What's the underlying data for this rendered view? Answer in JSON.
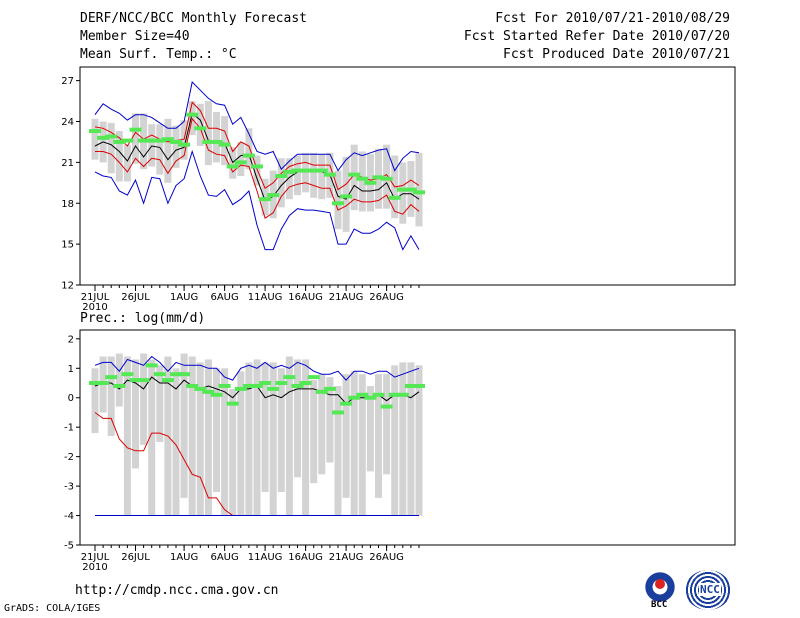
{
  "header": {
    "title": "DERF/NCC/BCC Monthly Forecast",
    "member_size": "Member Size=40",
    "variable": "Mean Surf. Temp.: °C",
    "forecast_period": "Fcst For 2010/07/21-2010/08/29",
    "started_refer": "Fcst Started Refer Date 2010/07/20",
    "produced": "Fcst Produced Date 2010/07/21"
  },
  "footer": {
    "url": "http://cmdp.ncc.cma.gov.cn",
    "grads": "GrADS: COLA/IGES",
    "logo_bcc": "BCC",
    "logo_ncc": "NCC"
  },
  "colors": {
    "box": "#d3d3d3",
    "ens_mean": "#000000",
    "max_min": "#0000cc",
    "spread": "#dd0000",
    "member_mark": "#55e855"
  },
  "chart_data": [
    {
      "id": "temperature",
      "type": "box-whisker-line",
      "title": "Mean Surf. Temp.: °C",
      "ylim": [
        12,
        28
      ],
      "yticks": [
        12,
        15,
        18,
        21,
        24,
        27
      ],
      "xlim": [
        0,
        40
      ],
      "xticks": [
        {
          "day": 0,
          "label": "21JUL",
          "sub": "2010"
        },
        {
          "day": 5,
          "label": "26JUL"
        },
        {
          "day": 11,
          "label": "1AUG"
        },
        {
          "day": 16,
          "label": "6AUG"
        },
        {
          "day": 21,
          "label": "11AUG"
        },
        {
          "day": 26,
          "label": "16AUG"
        },
        {
          "day": 31,
          "label": "21AUG"
        },
        {
          "day": 36,
          "label": "26AUG"
        }
      ],
      "box_low": [
        21.2,
        21.0,
        20.2,
        19.6,
        19.6,
        20.9,
        20.5,
        20.7,
        20.1,
        19.5,
        20.6,
        21.2,
        23.0,
        22.2,
        20.8,
        21.0,
        20.8,
        19.8,
        20.0,
        20.5,
        19.3,
        17.1,
        16.9,
        17.7,
        18.3,
        18.6,
        18.8,
        18.4,
        18.3,
        18.4,
        16.1,
        15.9,
        17.5,
        17.4,
        17.4,
        17.6,
        17.6,
        16.9,
        16.5,
        17.0,
        16.3
      ],
      "box_high": [
        24.2,
        24.0,
        23.9,
        23.3,
        22.3,
        24.6,
        24.6,
        23.8,
        23.8,
        24.2,
        23.7,
        24.1,
        25.5,
        25.3,
        25.5,
        24.7,
        24.4,
        22.1,
        22.5,
        23.5,
        21.5,
        19.8,
        20.4,
        21.3,
        21.3,
        21.5,
        21.7,
        21.7,
        21.6,
        21.7,
        20.4,
        21.4,
        22.3,
        21.8,
        21.6,
        22.0,
        22.3,
        21.5,
        21.0,
        21.1,
        21.7
      ],
      "series": [
        {
          "name": "Ensemble max",
          "color": "#0000cc",
          "values": [
            24.5,
            25.3,
            24.9,
            24.6,
            24.1,
            24.5,
            24.5,
            24.3,
            23.9,
            23.5,
            23.5,
            24.0,
            26.9,
            26.3,
            25.7,
            25.3,
            25.2,
            23.8,
            24.3,
            23.1,
            21.8,
            21.6,
            21.8,
            20.5,
            21.1,
            21.6,
            21.6,
            21.6,
            21.6,
            21.6,
            20.4,
            21.2,
            21.7,
            21.5,
            21.7,
            21.9,
            22.0,
            20.4,
            21.3,
            21.8,
            21.7
          ]
        },
        {
          "name": "Upper spread",
          "color": "#dd0000",
          "values": [
            23.6,
            23.5,
            23.2,
            22.8,
            22.2,
            23.2,
            22.7,
            23.0,
            22.7,
            22.5,
            22.6,
            22.7,
            25.4,
            24.8,
            23.5,
            23.5,
            23.3,
            21.8,
            22.5,
            22.2,
            20.5,
            19.1,
            19.5,
            20.2,
            20.7,
            20.9,
            21.0,
            20.8,
            20.8,
            20.8,
            19.0,
            19.4,
            20.1,
            19.9,
            19.7,
            19.8,
            20.1,
            19.2,
            19.3,
            19.7,
            19.3
          ]
        },
        {
          "name": "Ensemble mean",
          "color": "#000000",
          "values": [
            22.2,
            22.5,
            22.3,
            21.8,
            21.1,
            22.2,
            21.4,
            22.2,
            22.1,
            21.2,
            21.9,
            22.1,
            24.6,
            24.1,
            22.6,
            22.5,
            22.4,
            21.0,
            21.5,
            21.6,
            19.8,
            18.2,
            18.5,
            19.3,
            19.9,
            20.3,
            20.4,
            20.3,
            20.3,
            20.1,
            18.5,
            18.3,
            19.3,
            18.9,
            18.9,
            19.0,
            19.5,
            18.3,
            18.7,
            18.7,
            18.3
          ]
        },
        {
          "name": "Lower spread",
          "color": "#dd0000",
          "values": [
            21.8,
            21.8,
            21.6,
            21.0,
            20.3,
            21.3,
            20.7,
            21.3,
            21.2,
            20.2,
            21.1,
            21.5,
            24.2,
            23.5,
            21.9,
            21.6,
            21.5,
            20.3,
            20.8,
            20.7,
            18.9,
            16.9,
            17.3,
            18.5,
            19.2,
            19.4,
            19.5,
            19.3,
            19.1,
            19.1,
            17.5,
            17.8,
            18.3,
            18.1,
            18.1,
            18.2,
            18.6,
            17.4,
            17.2,
            17.9,
            17.4
          ]
        },
        {
          "name": "Ensemble min",
          "color": "#0000cc",
          "values": [
            20.3,
            20.0,
            19.9,
            18.9,
            18.6,
            19.7,
            18.0,
            19.9,
            19.8,
            18.0,
            19.3,
            19.8,
            21.8,
            20.0,
            18.6,
            18.5,
            19.0,
            17.9,
            18.3,
            18.9,
            16.4,
            14.6,
            14.6,
            16.1,
            17.1,
            17.6,
            17.5,
            17.5,
            17.4,
            17.3,
            15.0,
            15.0,
            16.1,
            15.8,
            15.8,
            16.1,
            16.6,
            16.2,
            14.6,
            15.6,
            14.6
          ]
        }
      ],
      "green_marks": [
        23.3,
        22.8,
        22.9,
        22.5,
        22.6,
        23.4,
        22.6,
        22.6,
        22.6,
        22.7,
        22.5,
        22.3,
        24.5,
        23.5,
        22.5,
        22.5,
        22.3,
        20.7,
        21.0,
        21.5,
        20.7,
        18.3,
        18.6,
        20.0,
        20.3,
        20.4,
        20.4,
        20.4,
        20.4,
        20.1,
        18.0,
        18.5,
        20.1,
        19.8,
        19.5,
        19.9,
        19.8,
        18.4,
        19.0,
        19.0,
        18.8
      ]
    },
    {
      "id": "precipitation",
      "type": "box-whisker-line",
      "title": "Prec.: log(mm/d)",
      "ylim": [
        -5,
        2.3
      ],
      "yticks": [
        -5,
        -4,
        -3,
        -2,
        -1,
        0,
        1,
        2
      ],
      "xlim": [
        0,
        40
      ],
      "xticks": [
        {
          "day": 0,
          "label": "21JUL",
          "sub": "2010"
        },
        {
          "day": 5,
          "label": "26JUL"
        },
        {
          "day": 11,
          "label": "1AUG"
        },
        {
          "day": 16,
          "label": "6AUG"
        },
        {
          "day": 21,
          "label": "11AUG"
        },
        {
          "day": 26,
          "label": "16AUG"
        },
        {
          "day": 31,
          "label": "21AUG"
        },
        {
          "day": 36,
          "label": "26AUG"
        }
      ],
      "box_low": [
        -1.2,
        -0.5,
        -1.3,
        -0.3,
        -4.0,
        -2.4,
        -1.6,
        -4.0,
        -1.5,
        -4.0,
        -4.0,
        -3.4,
        -4.0,
        -4.0,
        -4.0,
        -3.2,
        -4.0,
        -4.0,
        -4.0,
        -4.0,
        -4.0,
        -3.2,
        -4.0,
        -3.2,
        -4.0,
        -2.7,
        -4.0,
        -2.9,
        -2.6,
        -2.2,
        -4.0,
        -3.4,
        -4.0,
        -4.0,
        -2.5,
        -3.4,
        -2.6,
        -4.0,
        -4.0,
        -4.0,
        -4.0
      ],
      "box_high": [
        1.0,
        1.4,
        1.4,
        1.5,
        1.4,
        1.3,
        1.5,
        1.3,
        1.1,
        1.4,
        1.0,
        1.5,
        1.4,
        1.2,
        1.3,
        1.0,
        1.0,
        0.3,
        0.9,
        1.2,
        1.3,
        1.2,
        1.2,
        1.0,
        1.4,
        1.3,
        1.3,
        0.6,
        0.8,
        0.7,
        0.4,
        0.8,
        0.9,
        0.8,
        0.4,
        0.8,
        0.8,
        1.1,
        1.2,
        1.2,
        1.1
      ],
      "series": [
        {
          "name": "Ensemble max",
          "color": "#0000cc",
          "values": [
            1.1,
            1.2,
            1.2,
            0.9,
            1.3,
            1.2,
            1.1,
            1.4,
            1.2,
            0.9,
            1.2,
            1.1,
            1.1,
            1.1,
            1.0,
            1.0,
            0.7,
            0.6,
            1.0,
            1.1,
            1.0,
            1.2,
            1.0,
            1.1,
            1.0,
            1.2,
            1.1,
            0.9,
            0.8,
            0.8,
            0.9,
            0.6,
            0.9,
            0.9,
            0.8,
            0.9,
            0.9,
            0.7,
            0.8,
            0.9,
            1.0
          ]
        },
        {
          "name": "Ensemble mean",
          "color": "#000000",
          "values": [
            0.4,
            0.5,
            0.5,
            0.3,
            0.6,
            0.5,
            0.3,
            0.7,
            0.5,
            0.5,
            0.3,
            0.6,
            0.4,
            0.3,
            0.4,
            0.3,
            0.2,
            0.0,
            0.3,
            0.3,
            0.4,
            0.0,
            0.1,
            0.0,
            0.2,
            0.3,
            0.3,
            0.3,
            0.2,
            0.1,
            0.1,
            -0.2,
            0.0,
            0.0,
            0.0,
            0.1,
            -0.1,
            0.1,
            0.1,
            0.0,
            0.2
          ]
        },
        {
          "name": "Ensemble min",
          "color": "#dd0000",
          "values": [
            -0.5,
            -0.7,
            -0.7,
            -1.4,
            -1.7,
            -1.8,
            -1.8,
            -1.2,
            -1.2,
            -1.3,
            -1.6,
            -2.1,
            -2.6,
            -2.7,
            -3.4,
            -3.4,
            -3.8,
            -4.0,
            -4.0,
            -4.0,
            -4.0,
            -4.0,
            -4.0,
            -4.0,
            -4.0,
            -4.0,
            -4.0,
            -4.0,
            -4.0,
            -4.0,
            -4.0,
            -4.0,
            -4.0,
            -4.0,
            -4.0,
            -4.0,
            -4.0,
            -4.0,
            -4.0,
            -4.0,
            -4.0
          ]
        },
        {
          "name": "Lower bound",
          "color": "#0000cc",
          "values": [
            -4.0,
            -4.0,
            -4.0,
            -4.0,
            -4.0,
            -4.0,
            -4.0,
            -4.0,
            -4.0,
            -4.0,
            -4.0,
            -4.0,
            -4.0,
            -4.0,
            -4.0,
            -4.0,
            -4.0,
            -4.0,
            -4.0,
            -4.0,
            -4.0,
            -4.0,
            -4.0,
            -4.0,
            -4.0,
            -4.0,
            -4.0,
            -4.0,
            -4.0,
            -4.0,
            -4.0,
            -4.0,
            -4.0,
            -4.0,
            -4.0,
            -4.0,
            -4.0,
            -4.0,
            -4.0,
            -4.0,
            -4.0
          ]
        }
      ],
      "green_marks": [
        0.5,
        0.5,
        0.7,
        0.4,
        0.8,
        0.6,
        0.6,
        1.1,
        0.8,
        0.6,
        0.8,
        0.8,
        0.4,
        0.3,
        0.2,
        0.1,
        0.4,
        -0.2,
        0.3,
        0.4,
        0.4,
        0.5,
        0.3,
        0.5,
        0.7,
        0.4,
        0.5,
        0.7,
        0.2,
        0.3,
        -0.5,
        -0.2,
        0.0,
        0.1,
        0.0,
        0.1,
        -0.3,
        0.1,
        0.1,
        0.4,
        0.4
      ]
    }
  ]
}
